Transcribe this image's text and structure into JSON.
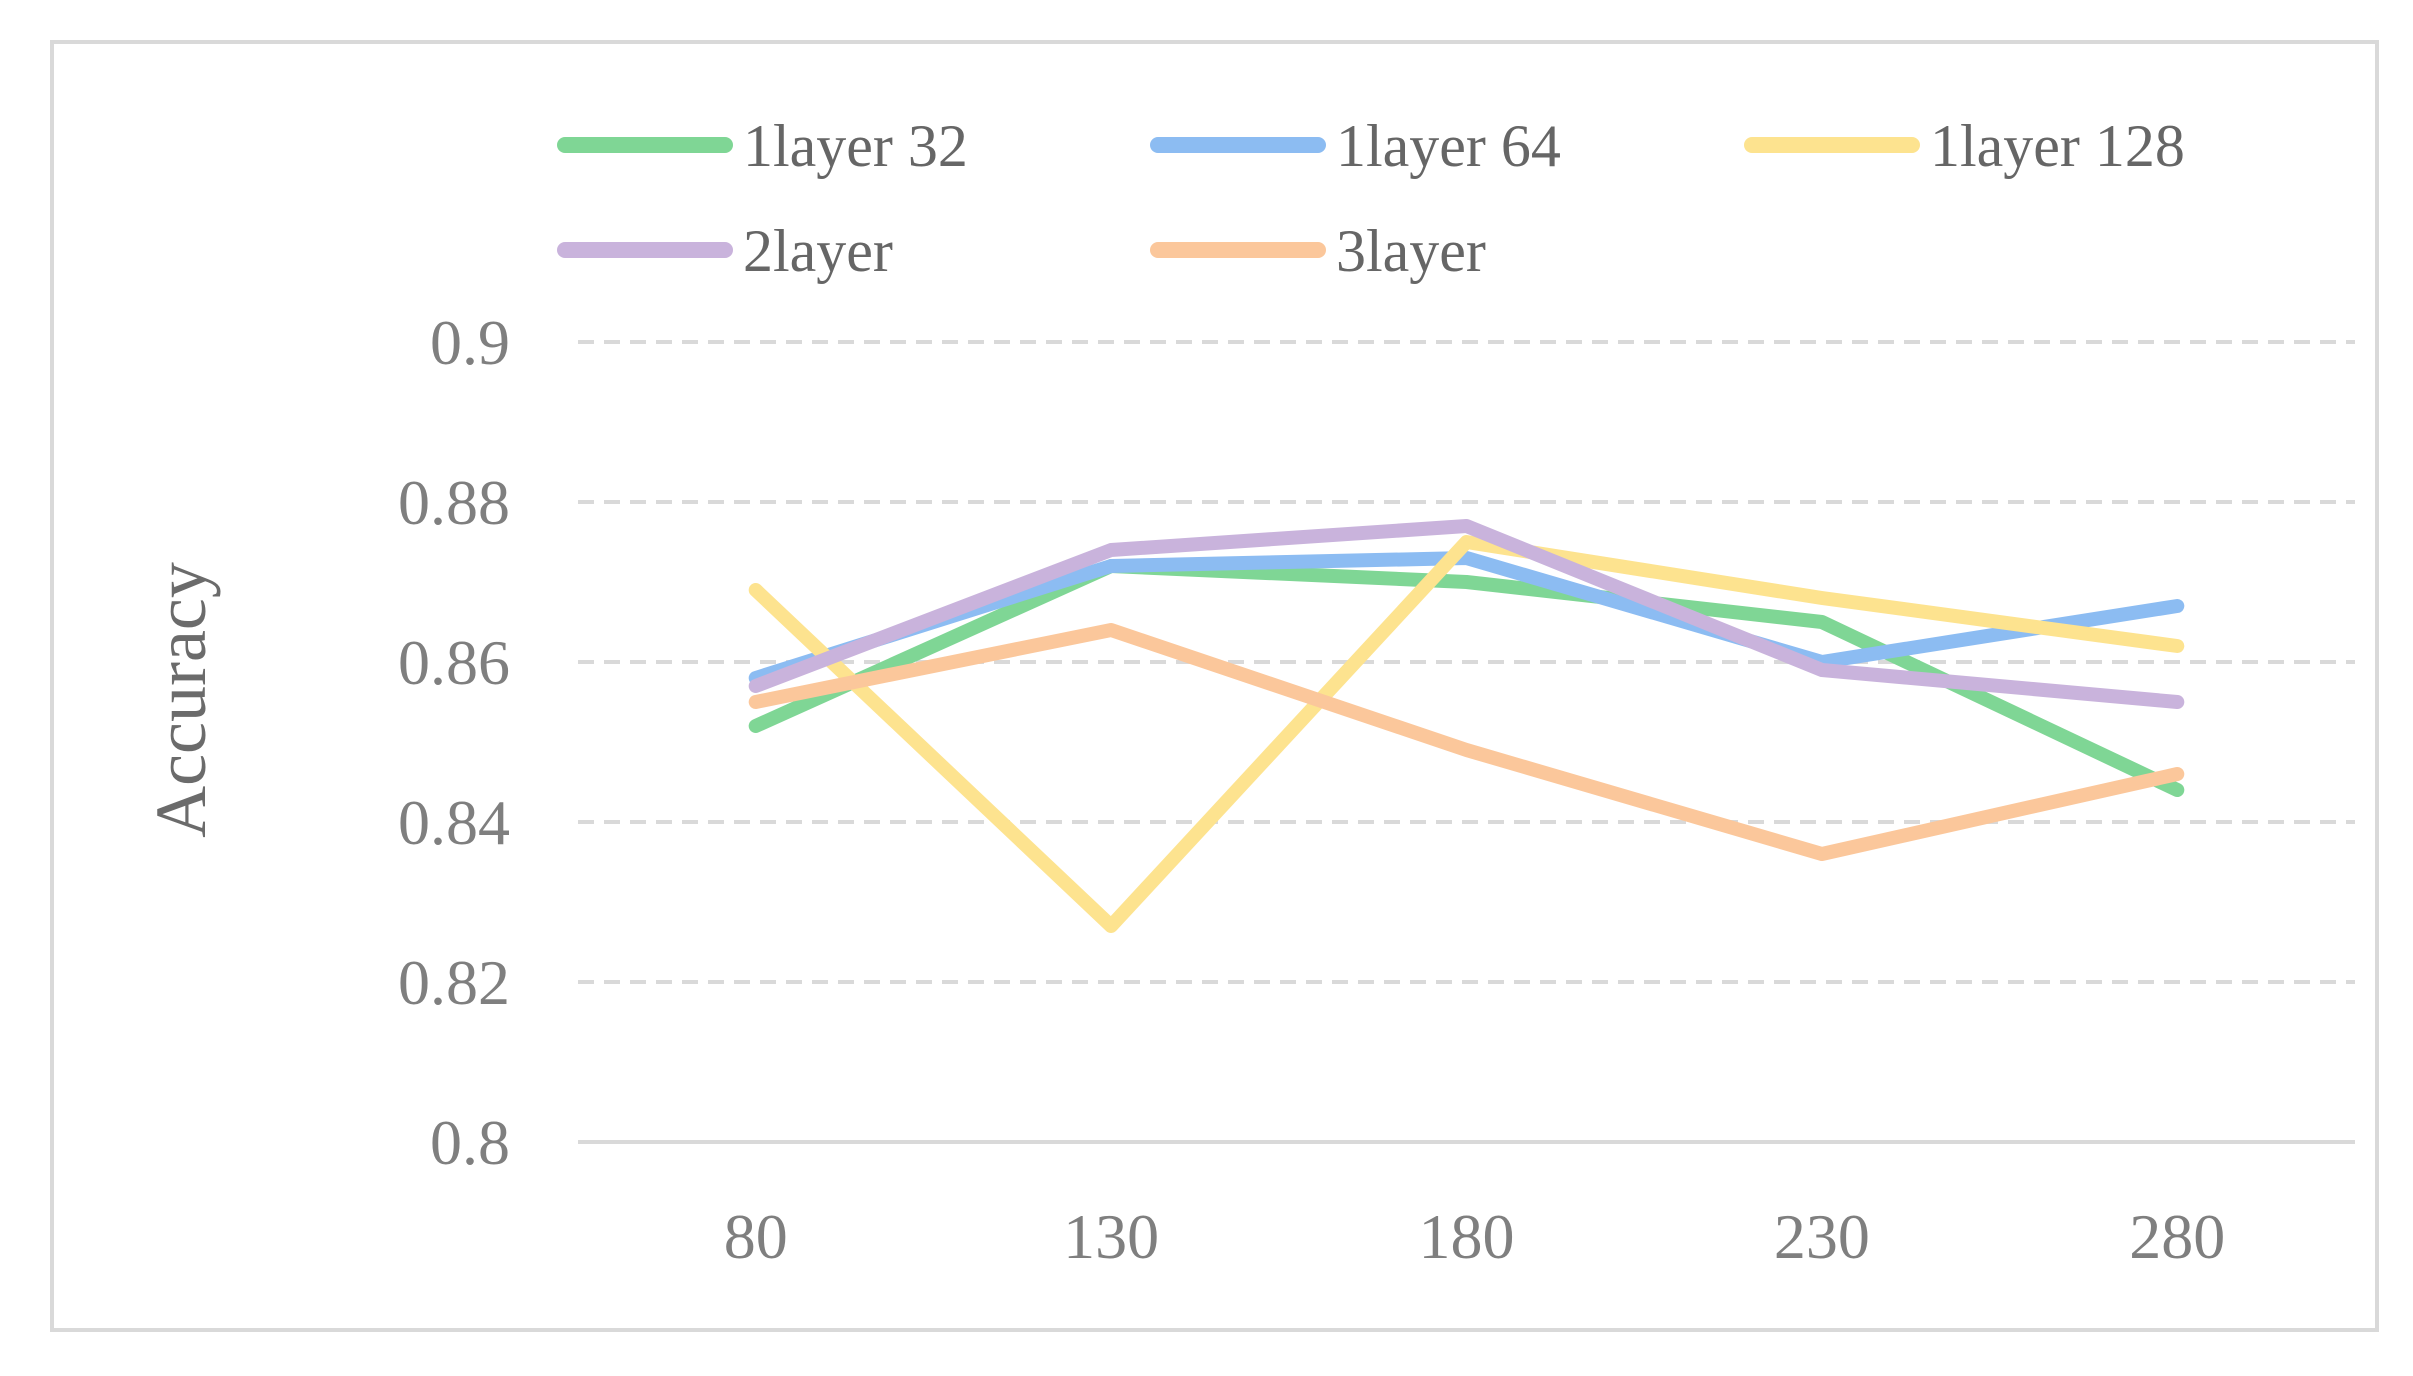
{
  "chart_data": {
    "type": "line",
    "title": "",
    "xlabel": "",
    "ylabel": "Accuracy",
    "categories": [
      "80",
      "130",
      "180",
      "230",
      "280"
    ],
    "ylim": [
      0.8,
      0.9
    ],
    "yticks": [
      "0.8",
      "0.82",
      "0.84",
      "0.86",
      "0.88",
      "0.9"
    ],
    "grid": "horizontal dashed",
    "legend_position": "top",
    "series": [
      {
        "name": "1layer 32",
        "color": "#7fd695",
        "values": [
          0.852,
          0.872,
          0.87,
          0.865,
          0.844
        ]
      },
      {
        "name": "1layer 64",
        "color": "#8cbcf2",
        "values": [
          0.858,
          0.872,
          0.873,
          0.86,
          0.867
        ]
      },
      {
        "name": "1layer 128",
        "color": "#fde38f",
        "values": [
          0.869,
          0.827,
          0.875,
          0.868,
          0.862
        ]
      },
      {
        "name": "2layer",
        "color": "#c9b3dc",
        "values": [
          0.857,
          0.874,
          0.877,
          0.859,
          0.855
        ]
      },
      {
        "name": "3layer",
        "color": "#fbc79b",
        "values": [
          0.855,
          0.864,
          0.849,
          0.836,
          0.846
        ]
      }
    ]
  }
}
